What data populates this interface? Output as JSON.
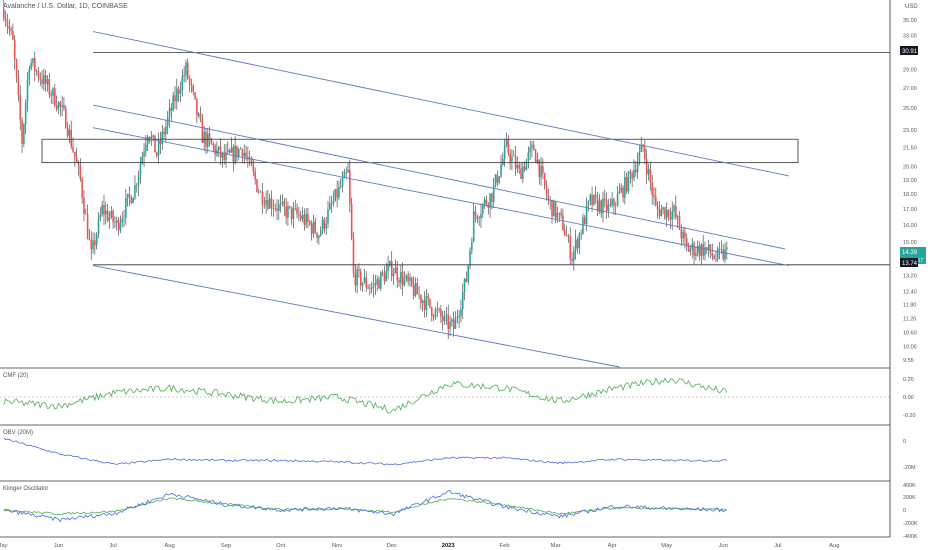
{
  "header": {
    "symbol_title": "Avalanche / U.S. Dollar, 1D, COINBASE",
    "currency": "USD"
  },
  "colors": {
    "up": "#26a69a",
    "down": "#ef5350",
    "wick": "#333333",
    "trendline": "#5b7bc0",
    "hline": "#333333",
    "cmf": "#4caf50",
    "obv": "#4a6fdc",
    "klinger": "#4a6fdc",
    "klinger_signal": "#4caf50",
    "price_tag_green": "#26a69a",
    "price_tag_dark": "#131722"
  },
  "price_axis": {
    "ticks": [
      "35.00",
      "33.00",
      "31.00",
      "29.00",
      "27.00",
      "25.00",
      "23.00",
      "21.50",
      "20.00",
      "19.00",
      "18.00",
      "17.00",
      "16.00",
      "15.00",
      "14.00",
      "13.20",
      "12.40",
      "11.80",
      "11.20",
      "10.60",
      "10.05",
      "9.55"
    ],
    "tag_upper": "30.91",
    "tag_last_price": "14.39",
    "tag_countdown": "17:07:57",
    "tag_support": "13.74"
  },
  "time_axis": {
    "labels": [
      "May",
      "Jun",
      "Jul",
      "Aug",
      "Sep",
      "Oct",
      "Nov",
      "Dec",
      "2023",
      "Feb",
      "Mar",
      "Apr",
      "May",
      "Jun",
      "Jul",
      "Aug"
    ]
  },
  "panes": {
    "cmf": {
      "title": "CMF (20)",
      "ticks": [
        "0.20",
        "0.00",
        "-0.20"
      ]
    },
    "obv": {
      "title": "OBV (20M)",
      "ticks": [
        "0",
        "-20M"
      ]
    },
    "klinger": {
      "title": "Klinger Oscillator",
      "ticks": [
        "200K",
        "0",
        "-200K",
        "-400K"
      ],
      "top_tick": "400K"
    }
  },
  "chart_data": [
    {
      "type": "candlestick",
      "title": "Avalanche / U.S. Dollar, 1D, COINBASE",
      "ylabel": "USD",
      "y_scale": "log",
      "ylim": [
        9.3,
        37.5
      ],
      "x": [
        "2022-05",
        "2022-06",
        "2022-07",
        "2022-08",
        "2022-09",
        "2022-10",
        "2022-11",
        "2022-12",
        "2023-01",
        "2023-02",
        "2023-03",
        "2023-04",
        "2023-05",
        "2023-06"
      ],
      "close_approx": [
        29.5,
        20.5,
        14.5,
        21.5,
        18.0,
        16.0,
        17.0,
        12.5,
        10.8,
        21.0,
        15.0,
        19.5,
        16.5,
        14.39
      ],
      "horizontal_levels": [
        30.91,
        13.74
      ],
      "resistance_zone": [
        20.3,
        22.2
      ],
      "last_price": 14.39
    },
    {
      "type": "line",
      "title": "CMF (20)",
      "ylim": [
        -0.3,
        0.3
      ],
      "x": [
        "2022-05",
        "2022-06",
        "2022-07",
        "2022-08",
        "2022-09",
        "2022-10",
        "2022-11",
        "2022-12",
        "2023-01",
        "2023-02",
        "2023-03",
        "2023-04",
        "2023-05",
        "2023-06"
      ],
      "values": [
        -0.05,
        -0.1,
        0.05,
        0.1,
        0.03,
        -0.05,
        0.0,
        -0.15,
        0.15,
        0.1,
        -0.05,
        0.1,
        0.2,
        0.05
      ]
    },
    {
      "type": "line",
      "title": "OBV (20M)",
      "ylim": [
        -30,
        10
      ],
      "x": [
        "2022-05",
        "2022-06",
        "2022-07",
        "2022-08",
        "2022-09",
        "2022-10",
        "2022-11",
        "2022-12",
        "2023-01",
        "2023-02",
        "2023-03",
        "2023-04",
        "2023-05",
        "2023-06"
      ],
      "values": [
        2,
        -10,
        -18,
        -14,
        -15,
        -15,
        -16,
        -18,
        -13,
        -13,
        -17,
        -14,
        -15,
        -15
      ]
    },
    {
      "type": "line",
      "title": "Klinger Oscillator",
      "ylim": [
        -400,
        400
      ],
      "x": [
        "2022-05",
        "2022-06",
        "2022-07",
        "2022-08",
        "2022-09",
        "2022-10",
        "2022-11",
        "2022-12",
        "2023-01",
        "2023-02",
        "2023-03",
        "2023-04",
        "2023-05",
        "2023-06"
      ],
      "series": [
        {
          "values": [
            0,
            -150,
            -50,
            250,
            80,
            0,
            30,
            -60,
            280,
            50,
            -100,
            60,
            20,
            0
          ]
        },
        {
          "values": [
            0,
            -60,
            -20,
            180,
            90,
            10,
            20,
            -30,
            180,
            80,
            -60,
            30,
            20,
            5
          ]
        }
      ]
    }
  ]
}
